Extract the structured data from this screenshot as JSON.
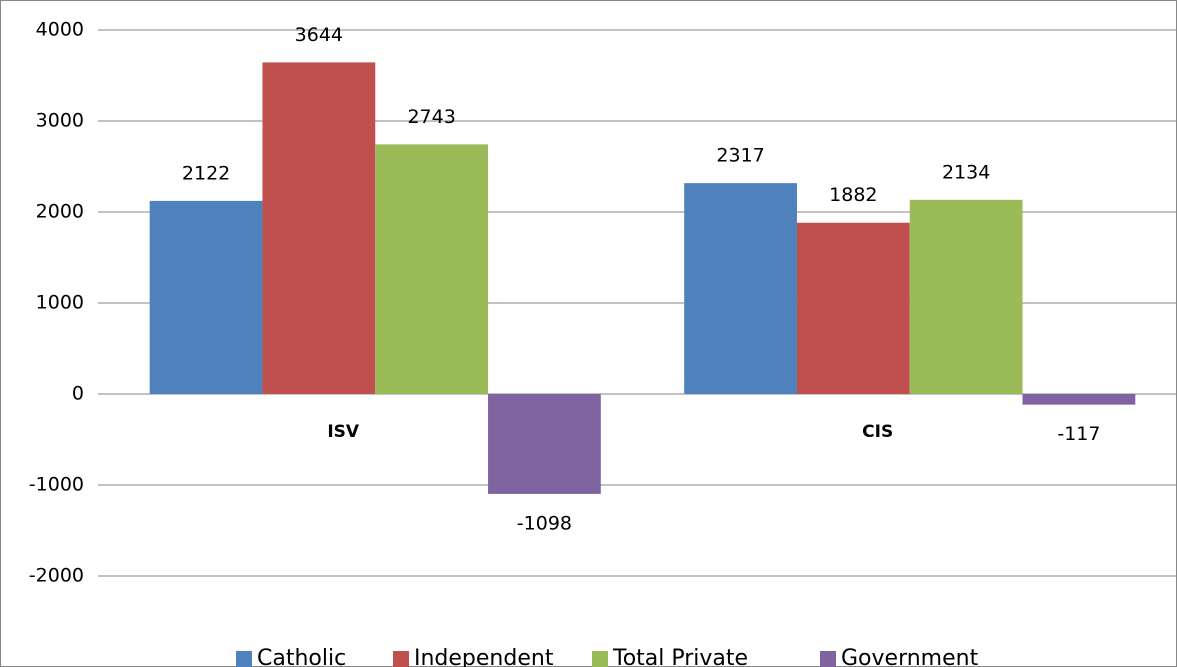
{
  "chart_data": {
    "type": "bar",
    "categories": [
      "ISV",
      "CIS"
    ],
    "series": [
      {
        "name": "Catholic",
        "color": "#4f81bd",
        "values": [
          2122,
          2317
        ]
      },
      {
        "name": "Independent",
        "color": "#c0504d",
        "values": [
          3644,
          1882
        ]
      },
      {
        "name": "Total Private",
        "color": "#9bbb59",
        "values": [
          2743,
          2134
        ]
      },
      {
        "name": "Government",
        "color": "#8064a2",
        "values": [
          -1098,
          -117
        ]
      }
    ],
    "ylim": [
      -2000,
      4000
    ],
    "yticks": [
      -2000,
      -1000,
      0,
      1000,
      2000,
      3000,
      4000
    ],
    "grid": true,
    "legend": "bottom"
  }
}
